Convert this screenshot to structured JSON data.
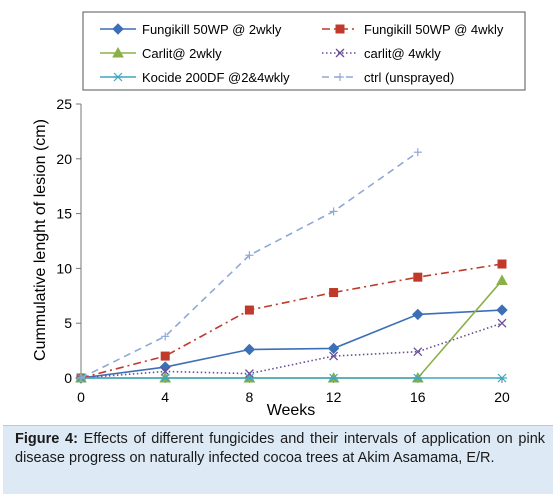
{
  "chart_data": {
    "type": "line",
    "xlabel": "Weeks",
    "ylabel": "Cummulative lenght of lesion (cm)",
    "x": [
      0,
      4,
      8,
      12,
      16,
      20
    ],
    "xlim": [
      0,
      20
    ],
    "ylim": [
      0,
      25
    ],
    "x_ticks": [
      "0",
      "4",
      "8",
      "12",
      "16",
      "20"
    ],
    "y_ticks": [
      "0",
      "5",
      "10",
      "15",
      "20",
      "25"
    ],
    "grid": false,
    "legend_position": "top",
    "series": [
      {
        "name": "Fungikill 50WP @ 2wkly",
        "color": "#3d6fb6",
        "marker": "diamond",
        "dash": "solid",
        "values": [
          0,
          1.0,
          2.6,
          2.7,
          5.8,
          6.2
        ]
      },
      {
        "name": "Fungikill 50WP @ 4wkly",
        "color": "#c0392b",
        "marker": "square",
        "dash": "dashdot",
        "values": [
          0,
          2.0,
          6.2,
          7.8,
          9.2,
          10.4
        ]
      },
      {
        "name": "Carlit@ 2wkly",
        "color": "#8ab04a",
        "marker": "triangle",
        "dash": "solid",
        "values": [
          0,
          0,
          0,
          0,
          0,
          8.9
        ]
      },
      {
        "name": "carlit@ 4wkly",
        "color": "#6a4d96",
        "marker": "x",
        "dash": "dotted",
        "values": [
          0,
          0.6,
          0.4,
          2.0,
          2.4,
          5.0
        ]
      },
      {
        "name": "Kocide 200DF @2&4wkly",
        "color": "#3fa6c0",
        "marker": "asterisk",
        "dash": "solid",
        "values": [
          0,
          0,
          0,
          0,
          0,
          0
        ]
      },
      {
        "name": "ctrl (unsprayed)",
        "color": "#8fa9d6",
        "marker": "plus",
        "dash": "dashed",
        "values": [
          0,
          3.8,
          11.2,
          15.2,
          20.6,
          null
        ]
      }
    ]
  },
  "caption": {
    "label": "Figure 4:",
    "text": " Effects of different fungicides and their intervals of application on pink disease progress on naturally infected cocoa trees at Akim Asamama, E/R."
  }
}
